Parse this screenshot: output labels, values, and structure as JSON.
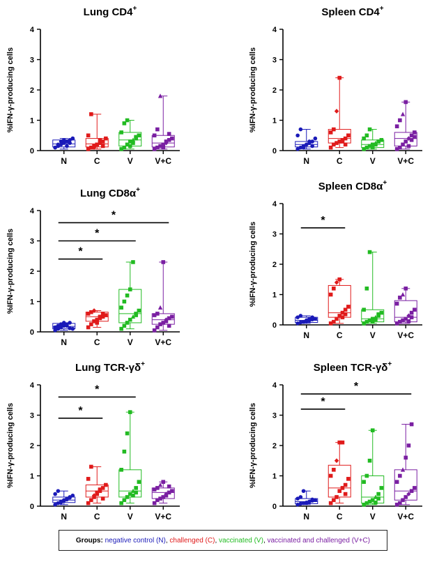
{
  "colors": {
    "N": "#1a1ab8",
    "C": "#e01b1b",
    "V": "#22bb22",
    "V+C": "#7a1fa2",
    "axis": "#000000"
  },
  "legend": {
    "title": "Groups:",
    "entries": [
      {
        "group": "N",
        "text": "negative control (N)"
      },
      {
        "group": "C",
        "text": "challenged (C)"
      },
      {
        "group": "V",
        "text": "vaccinated (V)"
      },
      {
        "group": "V+C",
        "text": "vaccinated and challenged (V+C)"
      }
    ],
    "separator": ",",
    "final_separator": ","
  },
  "chart_data": [
    {
      "type": "box",
      "title": "Lung CD4",
      "title_sup": "+",
      "ylabel": "%IFN-γ-producing cells",
      "ylim": [
        0,
        4
      ],
      "yticks": [
        0,
        1,
        2,
        3,
        4
      ],
      "categories": [
        "N",
        "C",
        "V",
        "V+C"
      ],
      "boxes": [
        {
          "group": "N",
          "min": 0.05,
          "q1": 0.12,
          "median": 0.22,
          "q3": 0.35,
          "max": 0.4
        },
        {
          "group": "C",
          "min": 0.05,
          "q1": 0.12,
          "median": 0.22,
          "q3": 0.4,
          "max": 1.2
        },
        {
          "group": "V",
          "min": 0.05,
          "q1": 0.15,
          "median": 0.35,
          "q3": 0.6,
          "max": 1.0
        },
        {
          "group": "V+C",
          "min": 0.05,
          "q1": 0.12,
          "median": 0.25,
          "q3": 0.5,
          "max": 1.8
        }
      ],
      "points": [
        [
          0.1,
          0.15,
          0.2,
          0.25,
          0.3,
          0.35,
          0.4,
          0.1,
          0.2,
          0.3,
          0.35,
          0.15,
          0.25,
          0.4
        ],
        [
          0.05,
          0.1,
          0.15,
          0.2,
          0.25,
          0.3,
          0.4,
          0.5,
          1.2,
          0.1,
          0.2,
          0.35,
          0.15
        ],
        [
          0.05,
          0.1,
          0.2,
          0.3,
          0.35,
          0.4,
          0.5,
          0.6,
          0.9,
          1.0,
          0.15,
          0.25,
          0.45
        ],
        [
          0.05,
          0.1,
          0.15,
          0.2,
          0.25,
          0.35,
          0.4,
          0.5,
          0.7,
          1.8,
          0.1,
          0.3,
          0.55
        ]
      ],
      "significance": []
    },
    {
      "type": "box",
      "title": "Spleen CD4",
      "title_sup": "+",
      "ylabel": "%IFN-γ-producing cells",
      "ylim": [
        0,
        4
      ],
      "yticks": [
        0,
        1,
        2,
        3,
        4
      ],
      "categories": [
        "N",
        "C",
        "V",
        "V+C"
      ],
      "boxes": [
        {
          "group": "N",
          "min": 0.05,
          "q1": 0.12,
          "median": 0.2,
          "q3": 0.3,
          "max": 0.7
        },
        {
          "group": "C",
          "min": 0.1,
          "q1": 0.25,
          "median": 0.4,
          "q3": 0.7,
          "max": 2.4
        },
        {
          "group": "V",
          "min": 0.05,
          "q1": 0.1,
          "median": 0.2,
          "q3": 0.35,
          "max": 0.7
        },
        {
          "group": "V+C",
          "min": 0.05,
          "q1": 0.15,
          "median": 0.4,
          "q3": 0.6,
          "max": 1.6
        }
      ],
      "points": [
        [
          0.05,
          0.1,
          0.15,
          0.2,
          0.25,
          0.3,
          0.4,
          0.5,
          0.7,
          0.1,
          0.2,
          0.3,
          0.15
        ],
        [
          0.1,
          0.2,
          0.25,
          0.3,
          0.35,
          0.4,
          0.5,
          0.6,
          0.7,
          1.3,
          2.4,
          0.3,
          0.2
        ],
        [
          0.05,
          0.1,
          0.15,
          0.2,
          0.25,
          0.3,
          0.35,
          0.4,
          0.5,
          0.7,
          0.1,
          0.2,
          0.3
        ],
        [
          0.05,
          0.1,
          0.2,
          0.3,
          0.4,
          0.5,
          0.6,
          0.8,
          1.0,
          1.2,
          1.6,
          0.15,
          0.35,
          0.45
        ]
      ],
      "significance": []
    },
    {
      "type": "box",
      "title": "Lung CD8α",
      "title_sup": "+",
      "ylabel": "%IFN-γ-producing cells",
      "ylim": [
        0,
        4
      ],
      "yticks": [
        0,
        1,
        2,
        3,
        4
      ],
      "categories": [
        "N",
        "C",
        "V",
        "V+C"
      ],
      "boxes": [
        {
          "group": "N",
          "min": 0.05,
          "q1": 0.1,
          "median": 0.18,
          "q3": 0.28,
          "max": 0.3
        },
        {
          "group": "C",
          "min": 0.15,
          "q1": 0.35,
          "median": 0.5,
          "q3": 0.65,
          "max": 0.7
        },
        {
          "group": "V",
          "min": 0.1,
          "q1": 0.3,
          "median": 0.6,
          "q3": 1.4,
          "max": 2.3
        },
        {
          "group": "V+C",
          "min": 0.05,
          "q1": 0.25,
          "median": 0.4,
          "q3": 0.6,
          "max": 2.3
        }
      ],
      "points": [
        [
          0.05,
          0.1,
          0.15,
          0.2,
          0.25,
          0.3,
          0.1,
          0.15,
          0.2,
          0.25,
          0.3,
          0.2,
          0.12
        ],
        [
          0.15,
          0.25,
          0.35,
          0.4,
          0.45,
          0.5,
          0.55,
          0.6,
          0.65,
          0.7,
          0.3,
          0.5,
          0.6
        ],
        [
          0.1,
          0.2,
          0.3,
          0.4,
          0.5,
          0.6,
          0.7,
          0.8,
          1.0,
          1.2,
          1.4,
          2.3,
          0.55
        ],
        [
          0.05,
          0.15,
          0.25,
          0.3,
          0.4,
          0.45,
          0.5,
          0.55,
          0.6,
          0.8,
          2.3,
          0.35,
          0.2
        ]
      ],
      "significance": [
        {
          "from": "N",
          "to": "C",
          "y": 2.4,
          "label": "*"
        },
        {
          "from": "N",
          "to": "V",
          "y": 3.0,
          "label": "*"
        },
        {
          "from": "N",
          "to": "V+C",
          "y": 3.6,
          "label": "*"
        }
      ]
    },
    {
      "type": "box",
      "title": "Spleen CD8α",
      "title_sup": "+",
      "ylabel": "%IFN-γ-producing cells",
      "ylim": [
        0,
        4
      ],
      "yticks": [
        0,
        1,
        2,
        3,
        4
      ],
      "categories": [
        "N",
        "C",
        "V",
        "V+C"
      ],
      "boxes": [
        {
          "group": "N",
          "min": 0.05,
          "q1": 0.08,
          "median": 0.15,
          "q3": 0.25,
          "max": 0.3
        },
        {
          "group": "C",
          "min": 0.05,
          "q1": 0.25,
          "median": 0.4,
          "q3": 1.3,
          "max": 1.5
        },
        {
          "group": "V",
          "min": 0.05,
          "q1": 0.1,
          "median": 0.2,
          "q3": 0.5,
          "max": 2.4
        },
        {
          "group": "V+C",
          "min": 0.05,
          "q1": 0.1,
          "median": 0.25,
          "q3": 0.8,
          "max": 1.2
        }
      ],
      "points": [
        [
          0.05,
          0.08,
          0.1,
          0.12,
          0.15,
          0.18,
          0.2,
          0.25,
          0.3,
          0.1,
          0.15,
          0.2,
          0.25
        ],
        [
          0.05,
          0.1,
          0.2,
          0.3,
          0.4,
          0.5,
          0.6,
          1.0,
          1.2,
          1.4,
          1.5,
          0.25,
          0.35
        ],
        [
          0.05,
          0.1,
          0.15,
          0.2,
          0.25,
          0.3,
          0.4,
          0.5,
          1.2,
          2.4,
          0.12,
          0.18,
          0.35
        ],
        [
          0.05,
          0.1,
          0.15,
          0.2,
          0.3,
          0.4,
          0.5,
          0.7,
          0.9,
          1.0,
          1.2,
          0.12,
          0.25
        ]
      ],
      "significance": [
        {
          "from": "N",
          "to": "C",
          "y": 3.2,
          "label": "*"
        }
      ]
    },
    {
      "type": "box",
      "title": "Lung TCR-γδ",
      "title_sup": "+",
      "ylabel": "%IFN-γ-producing cells",
      "ylim": [
        0,
        4
      ],
      "yticks": [
        0,
        1,
        2,
        3,
        4
      ],
      "categories": [
        "N",
        "C",
        "V",
        "V+C"
      ],
      "boxes": [
        {
          "group": "N",
          "min": 0.05,
          "q1": 0.12,
          "median": 0.2,
          "q3": 0.3,
          "max": 0.5
        },
        {
          "group": "C",
          "min": 0.1,
          "q1": 0.3,
          "median": 0.5,
          "q3": 0.7,
          "max": 1.3
        },
        {
          "group": "V",
          "min": 0.1,
          "q1": 0.3,
          "median": 0.5,
          "q3": 1.2,
          "max": 3.1
        },
        {
          "group": "V+C",
          "min": 0.1,
          "q1": 0.25,
          "median": 0.45,
          "q3": 0.6,
          "max": 0.8
        }
      ],
      "points": [
        [
          0.05,
          0.1,
          0.15,
          0.2,
          0.25,
          0.3,
          0.35,
          0.4,
          0.5,
          0.12,
          0.18,
          0.22,
          0.28
        ],
        [
          0.1,
          0.2,
          0.3,
          0.4,
          0.5,
          0.6,
          0.7,
          0.9,
          1.3,
          0.35,
          0.45,
          0.55,
          0.25
        ],
        [
          0.1,
          0.2,
          0.3,
          0.4,
          0.5,
          0.6,
          0.8,
          1.2,
          1.8,
          2.4,
          3.1,
          0.35,
          0.45
        ],
        [
          0.1,
          0.2,
          0.25,
          0.3,
          0.4,
          0.45,
          0.5,
          0.55,
          0.6,
          0.7,
          0.8,
          0.35,
          0.65
        ]
      ],
      "significance": [
        {
          "from": "N",
          "to": "C",
          "y": 2.9,
          "label": "*"
        },
        {
          "from": "N",
          "to": "V",
          "y": 3.6,
          "label": "*"
        }
      ]
    },
    {
      "type": "box",
      "title": "Spleen TCR-γδ",
      "title_sup": "+",
      "ylabel": "%IFN-γ-producing cells",
      "ylim": [
        0,
        4
      ],
      "yticks": [
        0,
        1,
        2,
        3,
        4
      ],
      "categories": [
        "N",
        "C",
        "V",
        "V+C"
      ],
      "boxes": [
        {
          "group": "N",
          "min": 0.05,
          "q1": 0.08,
          "median": 0.15,
          "q3": 0.25,
          "max": 0.5
        },
        {
          "group": "C",
          "min": 0.1,
          "q1": 0.3,
          "median": 0.6,
          "q3": 1.35,
          "max": 2.1
        },
        {
          "group": "V",
          "min": 0.05,
          "q1": 0.1,
          "median": 0.3,
          "q3": 1.0,
          "max": 2.5
        },
        {
          "group": "V+C",
          "min": 0.05,
          "q1": 0.2,
          "median": 0.5,
          "q3": 1.2,
          "max": 2.7
        }
      ],
      "points": [
        [
          0.05,
          0.08,
          0.1,
          0.12,
          0.15,
          0.18,
          0.2,
          0.25,
          0.3,
          0.5,
          0.1,
          0.15,
          0.22
        ],
        [
          0.1,
          0.2,
          0.3,
          0.5,
          0.6,
          0.7,
          0.9,
          1.0,
          1.2,
          1.5,
          2.1,
          2.1,
          0.4
        ],
        [
          0.05,
          0.1,
          0.15,
          0.2,
          0.3,
          0.4,
          0.6,
          0.8,
          1.0,
          1.5,
          2.5,
          0.12,
          0.25
        ],
        [
          0.05,
          0.1,
          0.2,
          0.3,
          0.4,
          0.5,
          0.6,
          0.8,
          1.0,
          1.2,
          1.6,
          2.0,
          2.7
        ]
      ],
      "significance": [
        {
          "from": "N",
          "to": "C",
          "y": 3.2,
          "label": "*"
        },
        {
          "from": "N",
          "to": "V+C",
          "y": 3.7,
          "label": "*"
        }
      ]
    }
  ]
}
